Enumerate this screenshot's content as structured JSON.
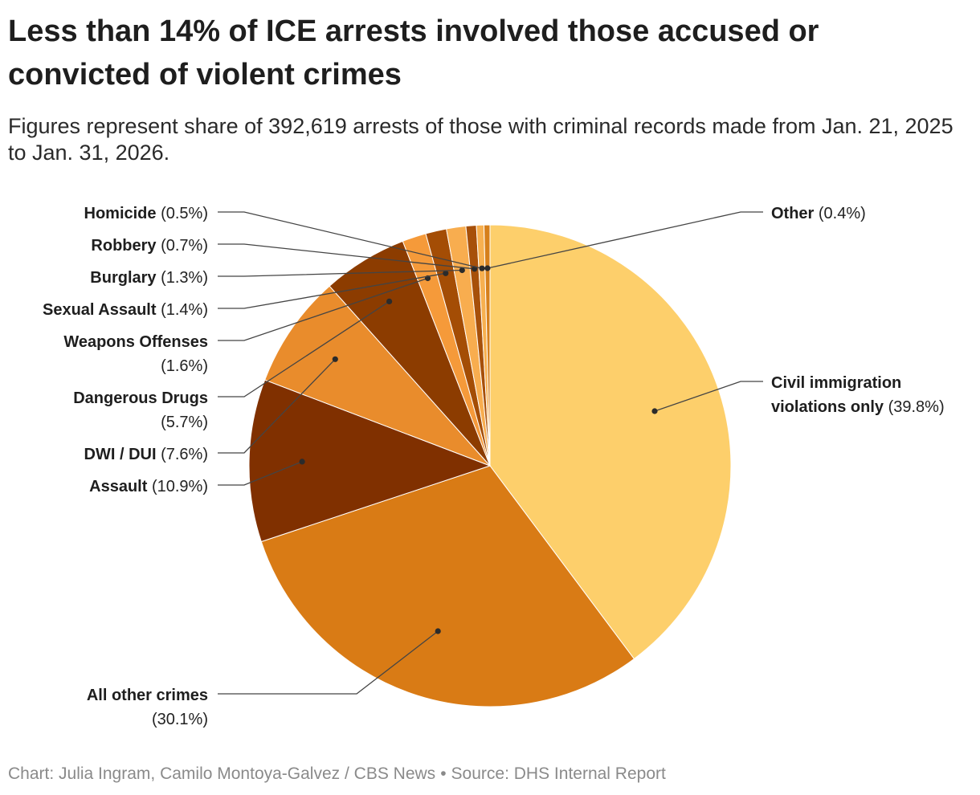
{
  "title": "Less than 14% of ICE arrests involved those accused or convicted of violent crimes",
  "subtitle": "Figures represent share of 392,619 arrests of those with criminal records made from Jan. 21, 2025 to Jan. 31, 2026.",
  "footer": {
    "credit": "Chart: Julia Ingram, Camilo Montoya-Galvez / CBS News",
    "separator": "•",
    "source": "Source: DHS Internal Report"
  },
  "chart_data": {
    "type": "pie",
    "unit": "%",
    "slices": [
      {
        "name": "Civil immigration violations only",
        "value": 39.8,
        "pct_label": "(39.8%)",
        "color": "#fdcf6b"
      },
      {
        "name": "All other crimes",
        "value": 30.1,
        "pct_label": "(30.1%)",
        "color": "#d97b15"
      },
      {
        "name": "Assault",
        "value": 10.9,
        "pct_label": "(10.9%)",
        "color": "#803000"
      },
      {
        "name": "DWI / DUI",
        "value": 7.6,
        "pct_label": "(7.6%)",
        "color": "#e98c2c"
      },
      {
        "name": "Dangerous Drugs",
        "value": 5.7,
        "pct_label": "(5.7%)",
        "color": "#8c3c00"
      },
      {
        "name": "Weapons Offenses",
        "value": 1.6,
        "pct_label": "(1.6%)",
        "color": "#f59a3a"
      },
      {
        "name": "Sexual Assault",
        "value": 1.4,
        "pct_label": "(1.4%)",
        "color": "#a44d05"
      },
      {
        "name": "Burglary",
        "value": 1.3,
        "pct_label": "(1.3%)",
        "color": "#f8ad4f"
      },
      {
        "name": "Robbery",
        "value": 0.7,
        "pct_label": "(0.7%)",
        "color": "#a7500a"
      },
      {
        "name": "Homicide",
        "value": 0.5,
        "pct_label": "(0.5%)",
        "color": "#f7b050"
      },
      {
        "name": "Other",
        "value": 0.4,
        "pct_label": "(0.4%)",
        "color": "#d67f1b"
      }
    ]
  }
}
